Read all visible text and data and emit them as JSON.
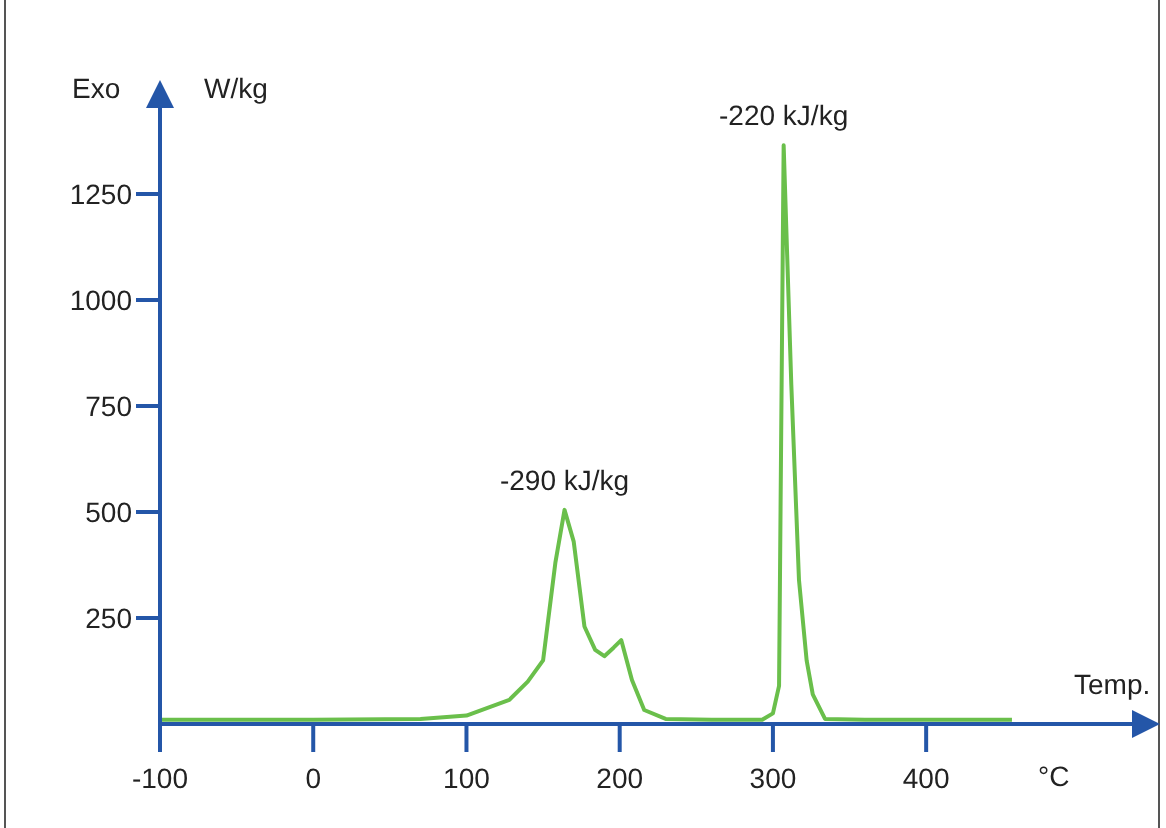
{
  "chart_data": {
    "type": "line",
    "xlabel": "Temp.",
    "ylabel": "W/kg",
    "annotations": [
      "Exo",
      "°C",
      {
        "text": "-290 kJ/kg",
        "x": 164,
        "y": 505
      },
      {
        "text": "-220 kJ/kg",
        "x": 307,
        "y": 1365
      }
    ],
    "series": [
      {
        "color": "#6abf4b",
        "x": [
          -100,
          0,
          70,
          100,
          128,
          140,
          150,
          158,
          164,
          170,
          177,
          184,
          190,
          196,
          201,
          208,
          216,
          230,
          260,
          293,
          300,
          304,
          307,
          312,
          317,
          322,
          326,
          334,
          360,
          400,
          456
        ],
        "values": [
          10,
          10,
          12,
          20,
          57,
          100,
          150,
          380,
          505,
          430,
          230,
          175,
          160,
          180,
          198,
          104,
          33,
          12,
          10,
          10,
          25,
          90,
          1365,
          800,
          340,
          150,
          70,
          12,
          10,
          10,
          10
        ]
      }
    ],
    "xlim": [
      -100,
      550
    ],
    "ylim": [
      0,
      1500
    ],
    "xticks": [
      -100,
      0,
      100,
      200,
      300,
      400
    ],
    "yticks": [
      250,
      500,
      750,
      1000,
      1250
    ],
    "grid": false,
    "legend": false,
    "marker": "none",
    "line_style": "solid"
  }
}
